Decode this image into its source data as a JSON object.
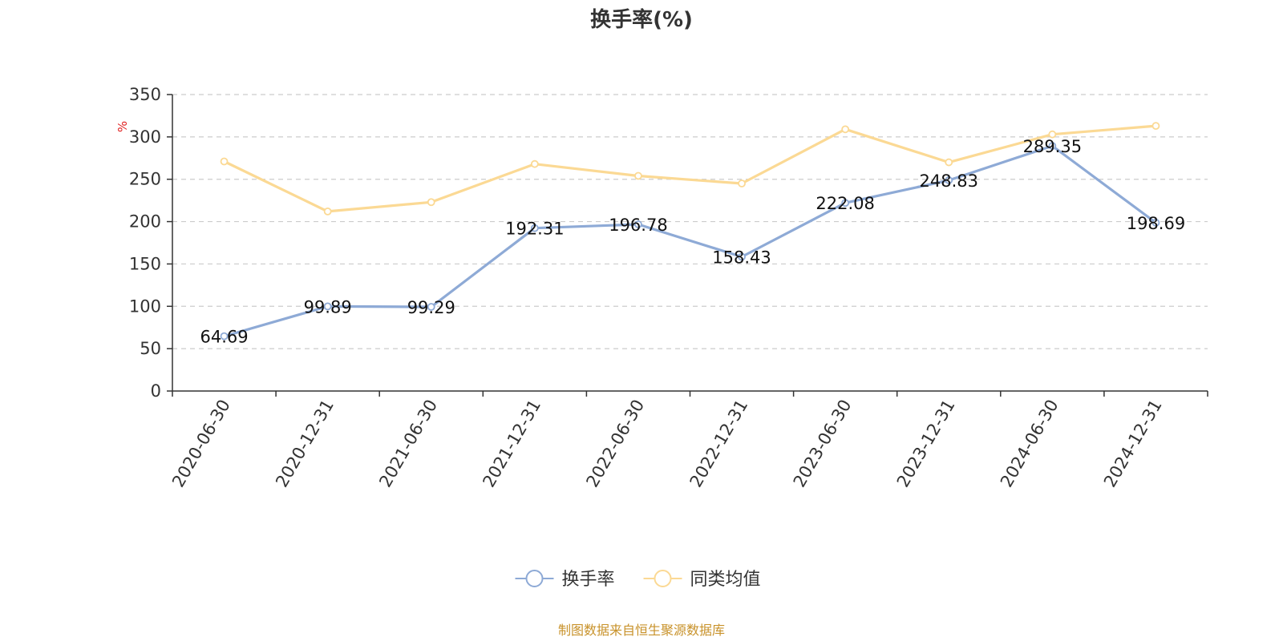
{
  "chart_data": {
    "type": "line",
    "title": "换手率(%)",
    "ylabel": "%",
    "ylim": [
      0,
      350
    ],
    "yticks": [
      0,
      50,
      100,
      150,
      200,
      250,
      300,
      350
    ],
    "grid": true,
    "legend_position": "bottom-center",
    "categories": [
      "2020-06-30",
      "2020-12-31",
      "2021-06-30",
      "2021-12-31",
      "2022-06-30",
      "2022-12-31",
      "2023-06-30",
      "2023-12-31",
      "2024-06-30",
      "2024-12-31"
    ],
    "series": [
      {
        "name": "换手率",
        "color": "#8eaad6",
        "show_labels": true,
        "values": [
          64.69,
          99.89,
          99.29,
          192.31,
          196.78,
          158.43,
          222.08,
          248.83,
          289.35,
          198.69
        ]
      },
      {
        "name": "同类均值",
        "color": "#fbd994",
        "show_labels": false,
        "values": [
          271,
          212,
          223,
          268,
          254,
          245,
          309,
          270,
          303,
          313
        ]
      }
    ]
  },
  "footer": {
    "source_text": "制图数据来自恒生聚源数据库",
    "source_color": "#c8922a"
  },
  "unit_color": "#e02020"
}
